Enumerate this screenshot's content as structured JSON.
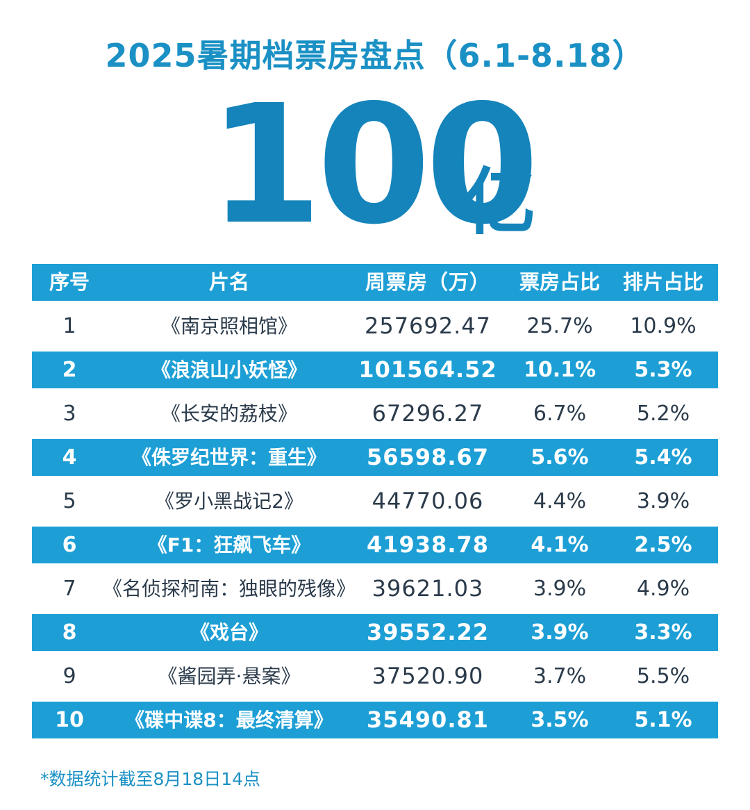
{
  "title": "2025暑期档票房盘点（6.1-8.18）",
  "hero": {
    "number": "100",
    "unit": "亿"
  },
  "colors": {
    "accent": "#1d9fd6",
    "title": "#1a90c4",
    "hero": "#1584bb",
    "text": "#2a3a4a"
  },
  "chart_data": {
    "type": "table",
    "columns": [
      "序号",
      "片名",
      "周票房（万）",
      "票房占比",
      "排片占比"
    ],
    "rows": [
      [
        "1",
        "《南京照相馆》",
        "257692.47",
        "25.7%",
        "10.9%"
      ],
      [
        "2",
        "《浪浪山小妖怪》",
        "101564.52",
        "10.1%",
        "5.3%"
      ],
      [
        "3",
        "《长安的荔枝》",
        "67296.27",
        "6.7%",
        "5.2%"
      ],
      [
        "4",
        "《侏罗纪世界：重生》",
        "56598.67",
        "5.6%",
        "5.4%"
      ],
      [
        "5",
        "《罗小黑战记2》",
        "44770.06",
        "4.4%",
        "3.9%"
      ],
      [
        "6",
        "《F1：狂飙飞车》",
        "41938.78",
        "4.1%",
        "2.5%"
      ],
      [
        "7",
        "《名侦探柯南：独眼的残像》",
        "39621.03",
        "3.9%",
        "4.9%"
      ],
      [
        "8",
        "《戏台》",
        "39552.22",
        "3.9%",
        "3.3%"
      ],
      [
        "9",
        "《酱园弄·悬案》",
        "37520.90",
        "3.7%",
        "5.5%"
      ],
      [
        "10",
        "《碟中谍8：最终清算》",
        "35490.81",
        "3.5%",
        "5.1%"
      ]
    ]
  },
  "footnote": "*数据统计截至8月18日14点"
}
